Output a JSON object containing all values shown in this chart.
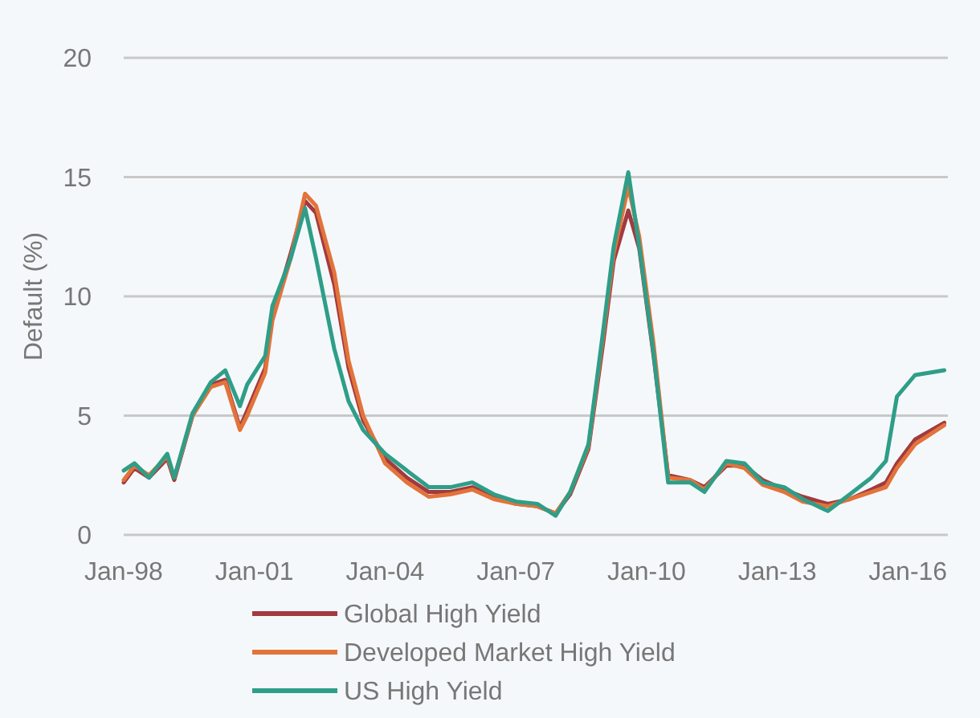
{
  "chart_data": {
    "type": "line",
    "ylabel": "Default (%)",
    "x": [
      "1998-01",
      "1998-04",
      "1998-08",
      "1999-01",
      "1999-03",
      "1999-08",
      "2000-01",
      "2000-05",
      "2000-09",
      "2000-11",
      "2001-04",
      "2001-06",
      "2001-11",
      "2002-03",
      "2002-06",
      "2002-11",
      "2003-03",
      "2003-07",
      "2004-01",
      "2004-07",
      "2005-01",
      "2005-07",
      "2006-01",
      "2006-07",
      "2007-01",
      "2007-07",
      "2007-12",
      "2008-04",
      "2008-09",
      "2009-01",
      "2009-04",
      "2009-08",
      "2009-11",
      "2010-03",
      "2010-07",
      "2011-01",
      "2011-05",
      "2011-11",
      "2012-04",
      "2012-09",
      "2013-03",
      "2013-08",
      "2014-03",
      "2014-09",
      "2015-03",
      "2015-07",
      "2015-10",
      "2016-03",
      "2016-11"
    ],
    "series": [
      {
        "name": "Global High Yield",
        "color": "#a23a3f",
        "values": [
          2.2,
          2.8,
          2.4,
          3.2,
          2.3,
          5.0,
          6.3,
          6.5,
          4.5,
          5.2,
          7.0,
          9.2,
          11.8,
          14.0,
          13.5,
          10.5,
          7.0,
          4.8,
          3.2,
          2.4,
          1.8,
          1.8,
          2.0,
          1.6,
          1.3,
          1.2,
          0.9,
          1.7,
          3.6,
          8.0,
          11.5,
          13.6,
          12.0,
          7.5,
          2.5,
          2.3,
          2.0,
          2.9,
          2.9,
          2.3,
          1.9,
          1.6,
          1.3,
          1.5,
          1.9,
          2.2,
          3.0,
          4.0,
          4.7
        ]
      },
      {
        "name": "Developed Market High Yield",
        "color": "#e2733a",
        "values": [
          2.3,
          2.9,
          2.5,
          3.3,
          2.4,
          5.0,
          6.2,
          6.4,
          4.4,
          5.0,
          6.8,
          9.0,
          11.6,
          14.3,
          13.8,
          11.0,
          7.3,
          5.0,
          3.0,
          2.2,
          1.6,
          1.7,
          1.9,
          1.5,
          1.3,
          1.2,
          0.9,
          1.8,
          3.7,
          8.3,
          11.8,
          14.6,
          12.5,
          8.0,
          2.4,
          2.3,
          1.9,
          3.0,
          2.8,
          2.1,
          1.8,
          1.4,
          1.2,
          1.5,
          1.8,
          2.0,
          2.8,
          3.8,
          4.6
        ]
      },
      {
        "name": "US High Yield",
        "color": "#2e9e88",
        "values": [
          2.7,
          3.0,
          2.4,
          3.4,
          2.4,
          5.1,
          6.4,
          6.9,
          5.4,
          6.3,
          7.5,
          9.6,
          11.6,
          13.7,
          11.6,
          7.8,
          5.6,
          4.4,
          3.4,
          2.7,
          2.0,
          2.0,
          2.2,
          1.7,
          1.4,
          1.3,
          0.8,
          1.8,
          3.8,
          8.5,
          12.1,
          15.2,
          12.1,
          7.6,
          2.2,
          2.2,
          1.8,
          3.1,
          3.0,
          2.2,
          2.0,
          1.5,
          1.0,
          1.7,
          2.4,
          3.1,
          5.8,
          6.7,
          6.9
        ]
      }
    ],
    "xlim": [
      "1998-01",
      "2016-12"
    ],
    "xticks": [
      {
        "value": "1998-01",
        "label": "Jan-98"
      },
      {
        "value": "2001-01",
        "label": "Jan-01"
      },
      {
        "value": "2004-01",
        "label": "Jan-04"
      },
      {
        "value": "2007-01",
        "label": "Jan-07"
      },
      {
        "value": "2010-01",
        "label": "Jan-10"
      },
      {
        "value": "2013-01",
        "label": "Jan-13"
      },
      {
        "value": "2016-01",
        "label": "Jan-16"
      }
    ],
    "ylim": [
      0,
      20
    ],
    "yticks": [
      0,
      5,
      10,
      15,
      20
    ],
    "grid": "y",
    "legend": "bottom",
    "marker": "none",
    "line_style": "solid"
  }
}
